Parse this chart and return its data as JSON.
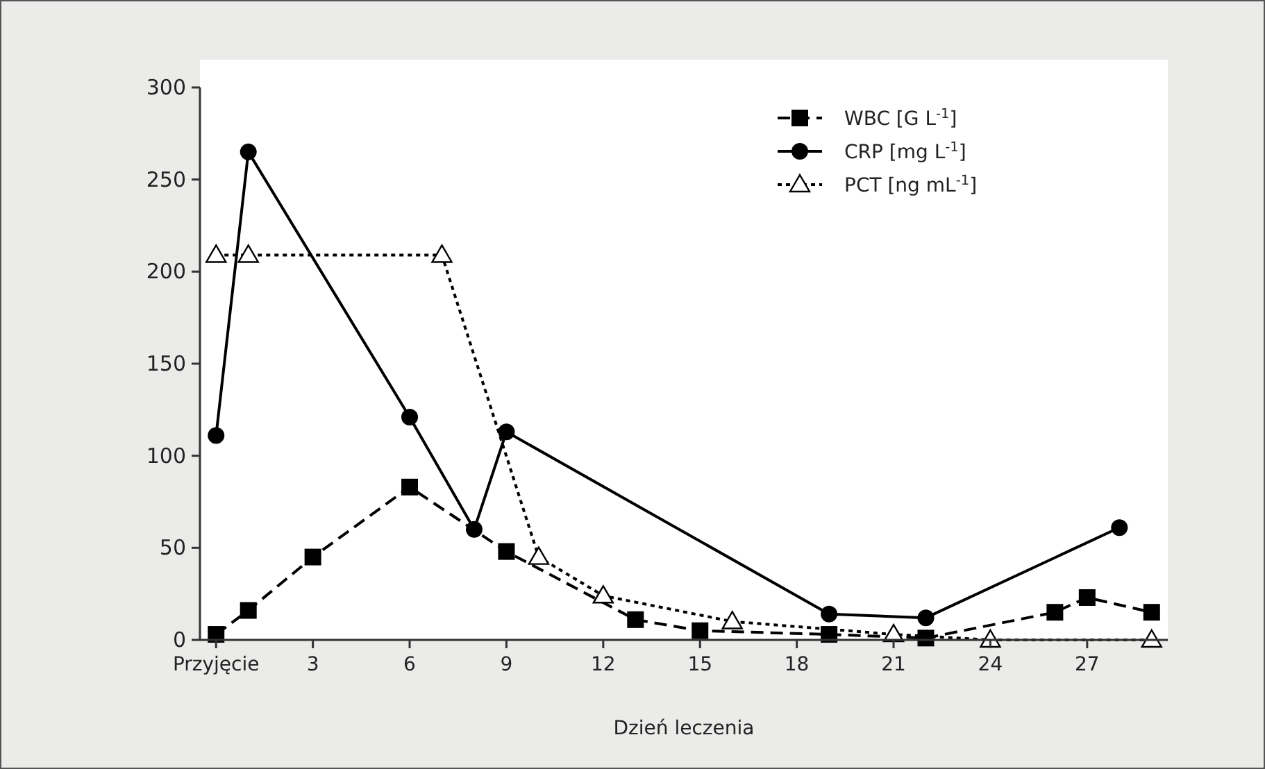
{
  "chart_data": {
    "type": "line",
    "xlabel": "Dzień leczenia",
    "xlim": [
      -0.5,
      29.5
    ],
    "xticks": [
      {
        "value": 0,
        "label": "Przyjęcie"
      },
      3,
      6,
      9,
      12,
      15,
      18,
      21,
      24,
      27
    ],
    "ylim": [
      0,
      300
    ],
    "yticks": [
      0,
      50,
      100,
      150,
      200,
      250,
      300
    ],
    "grid": false,
    "legend": "top right",
    "series": [
      {
        "name": "WBC [G L$^{-1}$]",
        "color": "#000000",
        "line_style": "dashed",
        "marker": "square",
        "x": [
          0,
          1,
          3,
          6,
          9,
          13,
          15,
          19,
          22,
          26,
          27,
          29
        ],
        "values": [
          3,
          16,
          45,
          83,
          48,
          11,
          5,
          3,
          1,
          15,
          23,
          15
        ]
      },
      {
        "name": "CRP [mg L$^{-1}$]",
        "color": "#000000",
        "line_style": "solid",
        "marker": "circle",
        "x": [
          0,
          1,
          6,
          8,
          9,
          19,
          22,
          28
        ],
        "values": [
          111,
          265,
          121,
          60,
          113,
          14,
          12,
          61
        ]
      },
      {
        "name": "PCT [ng mL$^{-1}$]",
        "color": "#000000",
        "line_style": "dotted",
        "marker": "triangle",
        "x": [
          0,
          1,
          7,
          10,
          12,
          16,
          21,
          24,
          29
        ],
        "values": [
          209,
          209,
          209,
          45,
          24,
          10,
          3,
          0,
          0
        ]
      }
    ]
  }
}
